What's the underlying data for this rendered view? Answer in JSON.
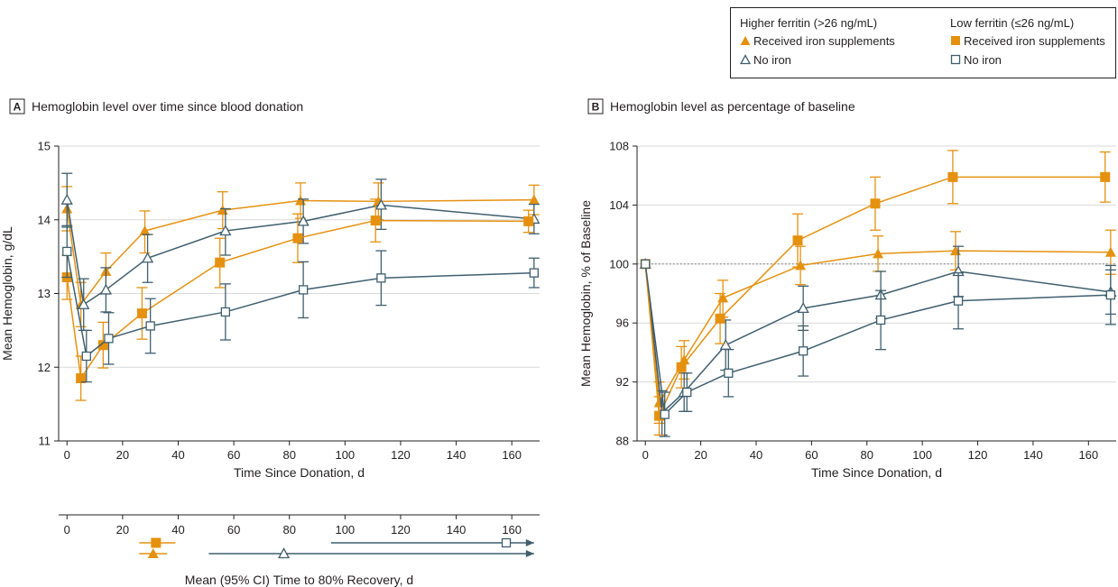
{
  "colors": {
    "iron": "#e5910f",
    "noiron": "#3f5f6f",
    "axis": "#231f20",
    "grid": "#d9d9d9"
  },
  "legend": {
    "higher_header": "Higher ferritin (>26 ng/mL)",
    "low_header": "Low ferritin (≤26 ng/mL)",
    "iron_label": "Received iron supplements",
    "noiron_label": "No iron"
  },
  "chart_data": [
    {
      "type": "line",
      "panel_letter": "A",
      "title": "Hemoglobin level over time since blood donation",
      "xlabel": "Time Since Donation, d",
      "ylabel": "Mean Hemoglobin, g/dL",
      "xlim": [
        -3,
        170
      ],
      "ylim": [
        11,
        15
      ],
      "xticks": [
        0,
        20,
        40,
        60,
        80,
        100,
        120,
        140,
        160
      ],
      "yticks": [
        11,
        12,
        13,
        14,
        15
      ],
      "grid": "horizontal",
      "series": [
        {
          "key": "hf_iron",
          "color": "iron",
          "marker": "triangle-filled",
          "points": [
            [
              0,
              14.15,
              13.85,
              14.45
            ],
            [
              5,
              12.85,
              12.55,
              13.15
            ],
            [
              14,
              13.3,
              13.0,
              13.55
            ],
            [
              28,
              13.85,
              13.55,
              14.12
            ],
            [
              56,
              14.13,
              13.88,
              14.38
            ],
            [
              84,
              14.26,
              14.02,
              14.5
            ],
            [
              112,
              14.25,
              14.0,
              14.5
            ],
            [
              168,
              14.27,
              14.07,
              14.47
            ]
          ]
        },
        {
          "key": "hf_noiron",
          "color": "noiron",
          "marker": "triangle-open",
          "points": [
            [
              0,
              14.27,
              13.9,
              14.63
            ],
            [
              6,
              12.85,
              12.5,
              13.2
            ],
            [
              14,
              13.05,
              12.75,
              13.35
            ],
            [
              29,
              13.48,
              13.15,
              13.8
            ],
            [
              57,
              13.85,
              13.52,
              14.15
            ],
            [
              85,
              13.98,
              13.68,
              14.28
            ],
            [
              113,
              14.2,
              13.87,
              14.55
            ],
            [
              168,
              14.01,
              13.81,
              14.21
            ]
          ]
        },
        {
          "key": "lf_iron",
          "color": "iron",
          "marker": "square-filled",
          "points": [
            [
              0,
              13.22,
              12.92,
              13.52
            ],
            [
              5,
              11.85,
              11.55,
              12.15
            ],
            [
              13,
              12.3,
              11.99,
              12.61
            ],
            [
              27,
              12.73,
              12.38,
              13.08
            ],
            [
              55,
              13.42,
              13.08,
              13.75
            ],
            [
              83,
              13.75,
              13.42,
              14.08
            ],
            [
              111,
              13.99,
              13.7,
              14.28
            ],
            [
              166,
              13.98,
              13.83,
              14.13
            ]
          ]
        },
        {
          "key": "lf_noiron",
          "color": "noiron",
          "marker": "square-open",
          "points": [
            [
              0,
              13.57,
              13.22,
              13.92
            ],
            [
              7,
              12.15,
              11.8,
              12.5
            ],
            [
              15,
              12.39,
              12.04,
              12.74
            ],
            [
              30,
              12.56,
              12.19,
              12.93
            ],
            [
              57,
              12.75,
              12.37,
              13.13
            ],
            [
              85,
              13.05,
              12.67,
              13.43
            ],
            [
              113,
              13.21,
              12.84,
              13.58
            ],
            [
              168,
              13.28,
              13.08,
              13.48
            ]
          ]
        }
      ]
    },
    {
      "type": "line",
      "panel_letter": "B",
      "title": "Hemoglobin level as percentage of baseline",
      "xlabel": "Time Since Donation, d",
      "ylabel": "Mean Hemoglobin, % of Baseline",
      "xlim": [
        -3,
        170
      ],
      "ylim": [
        88,
        108
      ],
      "xticks": [
        0,
        20,
        40,
        60,
        80,
        100,
        120,
        140,
        160
      ],
      "yticks": [
        88,
        92,
        96,
        100,
        104,
        108
      ],
      "grid": "horizontal",
      "reference_line": 100,
      "series": [
        {
          "key": "hf_iron",
          "color": "iron",
          "marker": "triangle-filled",
          "points": [
            [
              0,
              100,
              100,
              100
            ],
            [
              5,
              90.6,
              89.2,
              92.0
            ],
            [
              14,
              93.5,
              92.2,
              94.8
            ],
            [
              28,
              97.7,
              96.4,
              98.9
            ],
            [
              56,
              99.9,
              98.6,
              101.2
            ],
            [
              84,
              100.7,
              99.5,
              101.9
            ],
            [
              112,
              100.9,
              99.6,
              102.2
            ],
            [
              168,
              100.8,
              99.3,
              102.3
            ]
          ]
        },
        {
          "key": "hf_noiron",
          "color": "noiron",
          "marker": "triangle-open",
          "points": [
            [
              0,
              100,
              100,
              100
            ],
            [
              6,
              89.9,
              88.4,
              91.4
            ],
            [
              14,
              91.3,
              90.0,
              92.6
            ],
            [
              29,
              94.5,
              92.8,
              96.2
            ],
            [
              57,
              97.0,
              95.5,
              98.5
            ],
            [
              85,
              97.9,
              96.3,
              99.5
            ],
            [
              113,
              99.5,
              97.8,
              101.2
            ],
            [
              168,
              98.1,
              96.6,
              99.6
            ]
          ]
        },
        {
          "key": "lf_iron",
          "color": "iron",
          "marker": "square-filled",
          "points": [
            [
              0,
              100,
              100,
              100
            ],
            [
              5,
              89.7,
              88.4,
              91.0
            ],
            [
              13,
              93.0,
              91.6,
              94.4
            ],
            [
              27,
              96.3,
              94.6,
              98.0
            ],
            [
              55,
              101.6,
              99.8,
              103.4
            ],
            [
              83,
              104.1,
              102.3,
              105.9
            ],
            [
              111,
              105.9,
              104.1,
              107.7
            ],
            [
              166,
              105.9,
              104.2,
              107.6
            ]
          ]
        },
        {
          "key": "lf_noiron",
          "color": "noiron",
          "marker": "square-open",
          "points": [
            [
              0,
              100,
              100,
              100
            ],
            [
              7,
              89.8,
              88.3,
              91.3
            ],
            [
              15,
              91.3,
              90.0,
              92.6
            ],
            [
              30,
              92.6,
              91.0,
              94.2
            ],
            [
              57,
              94.1,
              92.4,
              95.8
            ],
            [
              85,
              96.2,
              94.2,
              98.2
            ],
            [
              113,
              97.5,
              95.6,
              99.4
            ],
            [
              168,
              97.9,
              95.9,
              99.9
            ]
          ]
        }
      ]
    },
    {
      "type": "interval",
      "xlabel": "Mean (95% CI) Time to 80% Recovery, d",
      "xlim": [
        -3,
        170
      ],
      "xticks": [
        0,
        20,
        40,
        60,
        80,
        100,
        120,
        140,
        160
      ],
      "intervals": [
        {
          "key": "lf_iron",
          "color": "iron",
          "marker": "square-filled",
          "mean": 32,
          "low": 26,
          "high": 39,
          "open_ended": false
        },
        {
          "key": "hf_iron",
          "color": "iron",
          "marker": "triangle-filled",
          "mean": 31,
          "low": 26,
          "high": 36,
          "open_ended": false
        },
        {
          "key": "lf_noiron",
          "color": "noiron",
          "marker": "square-open",
          "mean": 158,
          "low": 95,
          "high": 168,
          "open_ended": true
        },
        {
          "key": "hf_noiron",
          "color": "noiron",
          "marker": "triangle-open",
          "mean": 78,
          "low": 51,
          "high": 168,
          "open_ended": true
        }
      ]
    }
  ]
}
